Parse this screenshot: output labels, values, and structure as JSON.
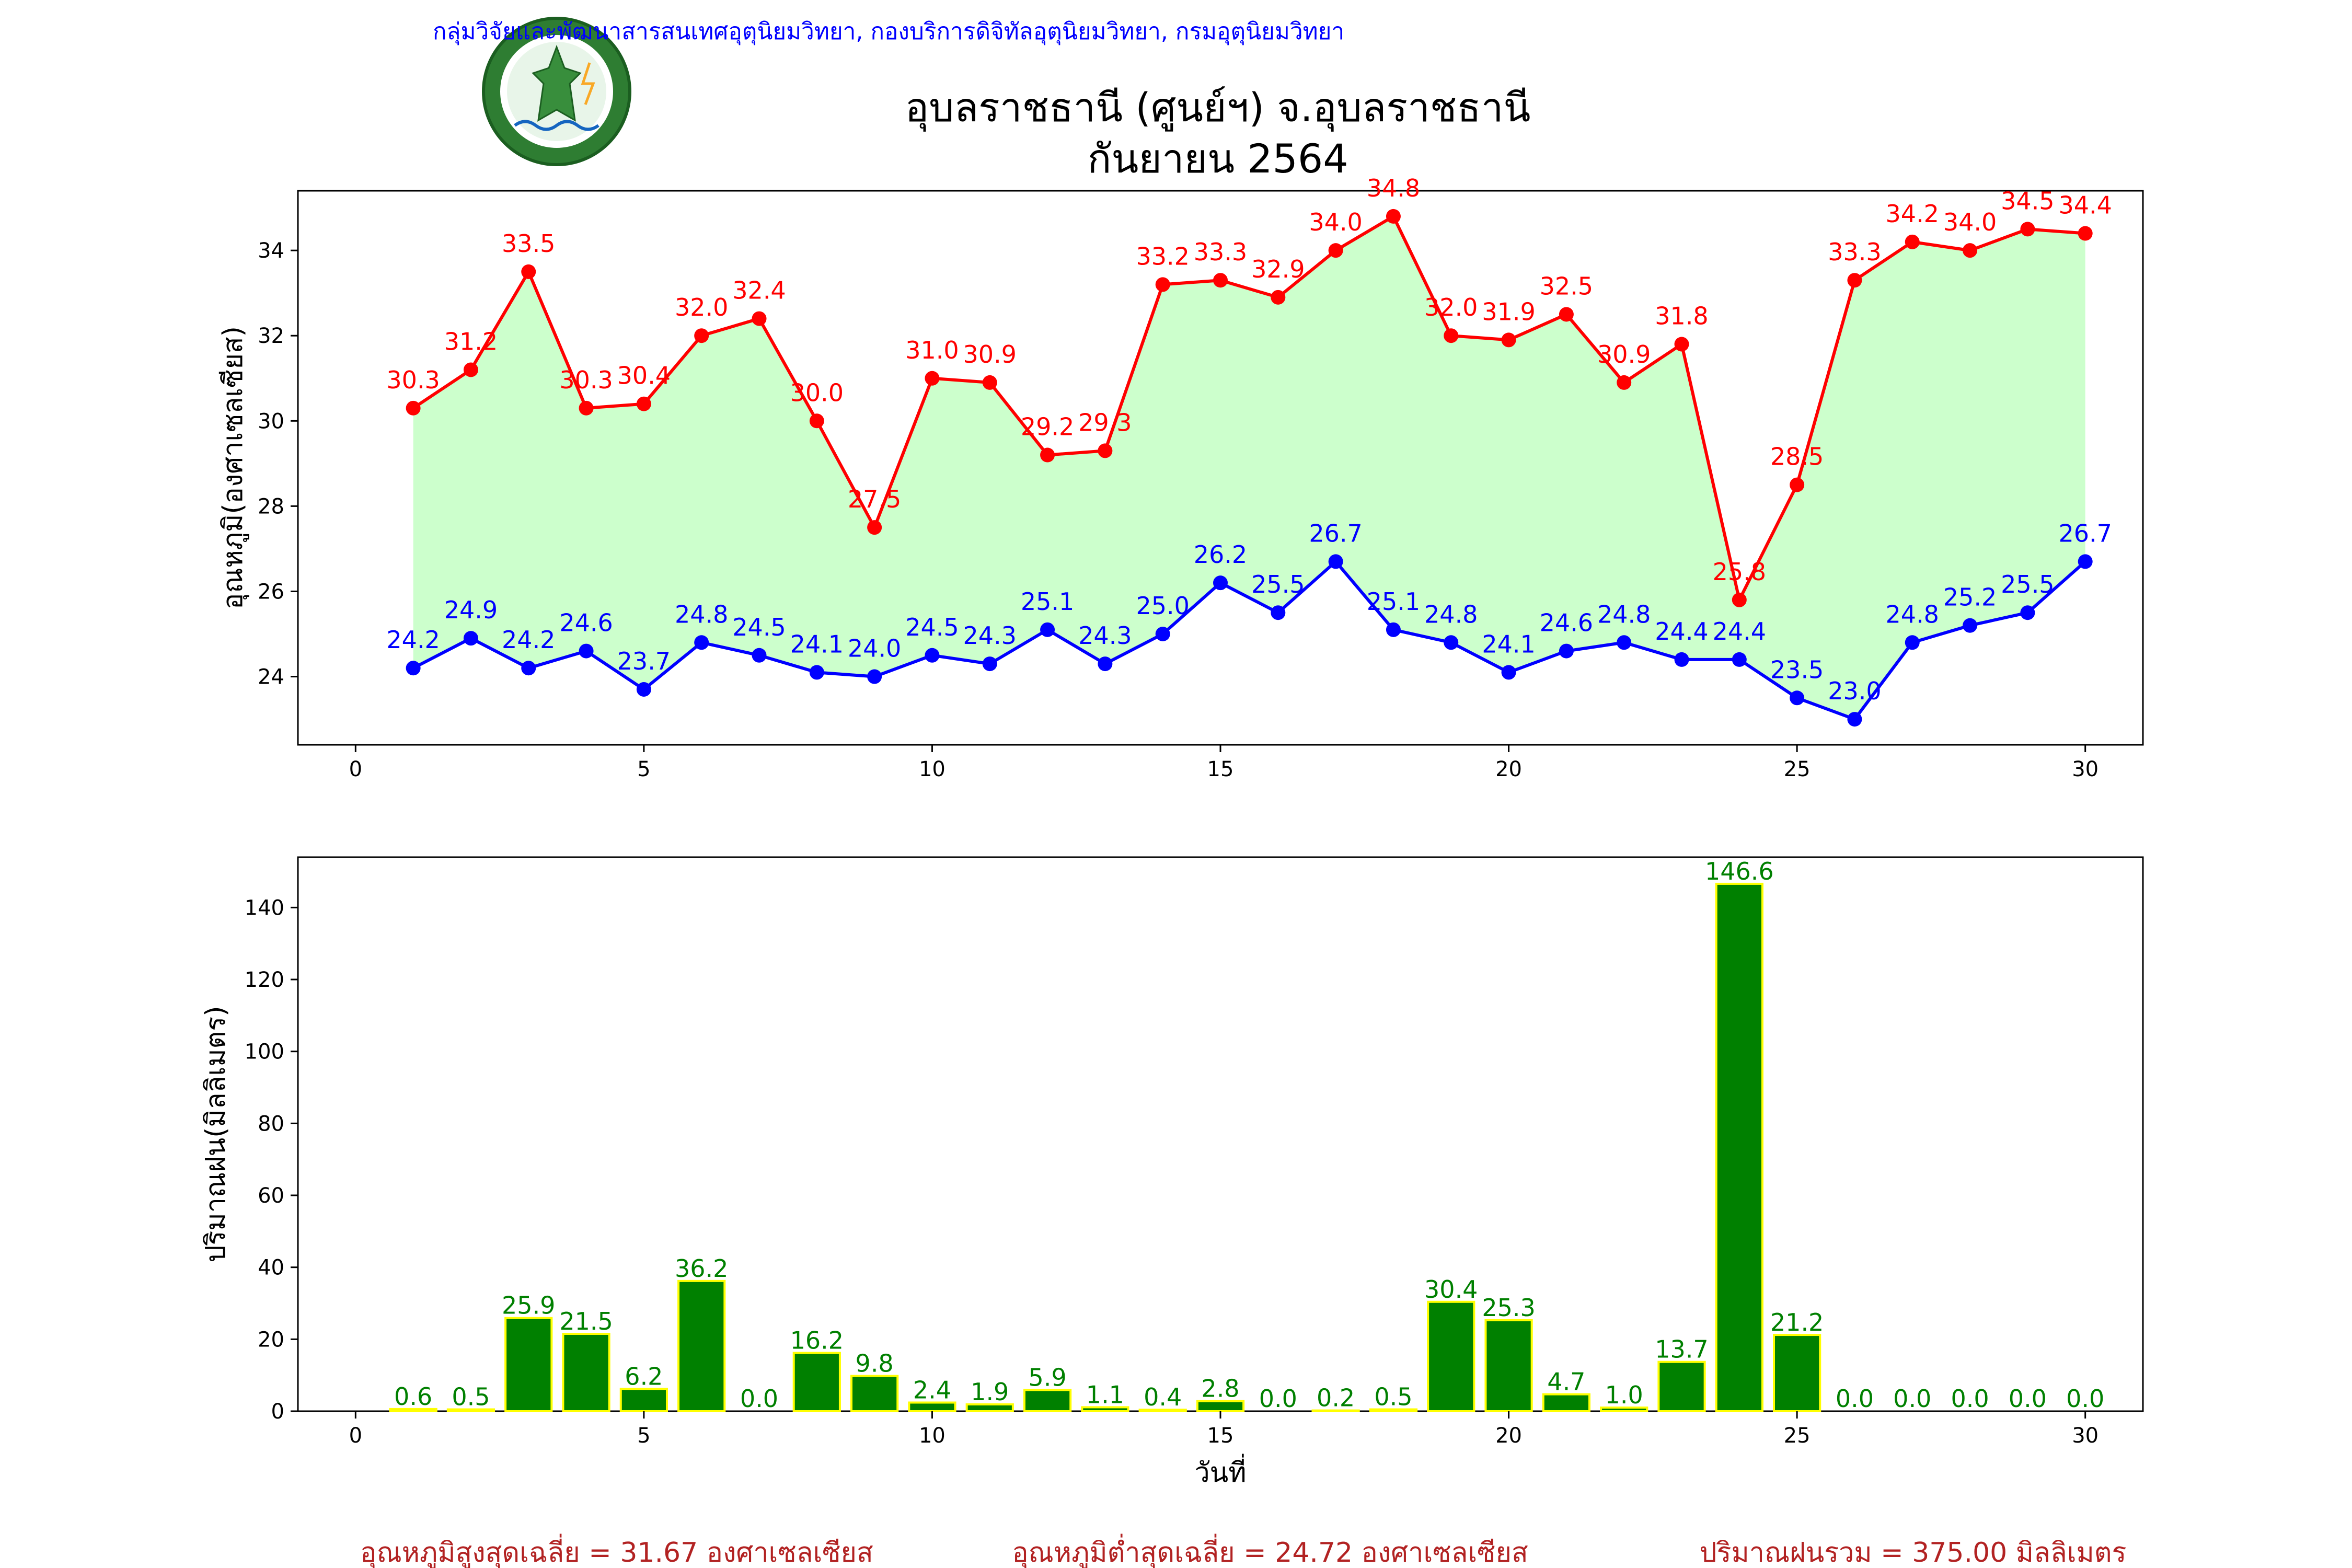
{
  "header": {
    "department": "กลุ่มวิจัยและพัฒนาสารสนเทศอุตุนิยมวิทยา, กองบริการดิจิทัลอุตุนิยมวิทยา, กรมอุตุนิยมวิทยา",
    "logo_text": "กรมอุตุนิยมวิทยา METEOROLOGICAL DEPARTMENT",
    "title_line1": "อุบลราชธานี (ศูนย์ฯ) จ.อุบลราชธานี",
    "title_line2": "กันยายน 2564"
  },
  "colors": {
    "header_text": "#0000ff",
    "max_temp": "#ff0000",
    "min_temp": "#0000ff",
    "temp_fill": "#ccffcc",
    "rain_bar": "#008000",
    "rain_edge": "#ffff00",
    "rain_label": "#008000",
    "summary": "#b22222"
  },
  "chart_data": [
    {
      "type": "line",
      "title": "",
      "xlabel": "",
      "ylabel": "อุณหภูมิ(องศาเซลเซียส)",
      "xlim": [
        -1,
        31
      ],
      "ylim": [
        22.4,
        35.4
      ],
      "xticks": [
        0,
        5,
        10,
        15,
        20,
        25,
        30
      ],
      "yticks": [
        24,
        26,
        28,
        30,
        32,
        34
      ],
      "fill_between": [
        "max",
        "min"
      ],
      "x": [
        1,
        2,
        3,
        4,
        5,
        6,
        7,
        8,
        9,
        10,
        11,
        12,
        13,
        14,
        15,
        16,
        17,
        18,
        19,
        20,
        21,
        22,
        23,
        24,
        25,
        26,
        27,
        28,
        29,
        30
      ],
      "series": [
        {
          "id": "max",
          "values": [
            30.3,
            31.2,
            33.5,
            30.3,
            30.4,
            32.0,
            32.4,
            30.0,
            27.5,
            31.0,
            30.9,
            29.2,
            29.3,
            33.2,
            33.3,
            32.9,
            34.0,
            34.8,
            32.0,
            31.9,
            32.5,
            30.9,
            31.8,
            25.8,
            28.5,
            33.3,
            34.2,
            34.0,
            34.5,
            34.4
          ]
        },
        {
          "id": "min",
          "values": [
            24.2,
            24.9,
            24.2,
            24.6,
            23.7,
            24.8,
            24.5,
            24.1,
            24.0,
            24.5,
            24.3,
            25.1,
            24.3,
            25.0,
            26.2,
            25.5,
            26.7,
            25.1,
            24.8,
            24.1,
            24.6,
            24.8,
            24.4,
            24.4,
            23.5,
            23.0,
            24.8,
            25.2,
            25.5,
            26.7
          ]
        }
      ]
    },
    {
      "type": "bar",
      "title": "",
      "xlabel": "วันที่",
      "ylabel": "ปริมาณฝน(มิลลิเมตร)",
      "xlim": [
        -1,
        31
      ],
      "ylim": [
        0,
        154
      ],
      "xticks": [
        0,
        5,
        10,
        15,
        20,
        25,
        30
      ],
      "yticks": [
        0,
        20,
        40,
        60,
        80,
        100,
        120,
        140
      ],
      "x": [
        1,
        2,
        3,
        4,
        5,
        6,
        7,
        8,
        9,
        10,
        11,
        12,
        13,
        14,
        15,
        16,
        17,
        18,
        19,
        20,
        21,
        22,
        23,
        24,
        25,
        26,
        27,
        28,
        29,
        30
      ],
      "values": [
        0.6,
        0.5,
        25.9,
        21.5,
        6.2,
        36.2,
        0.0,
        16.2,
        9.8,
        2.4,
        1.9,
        5.9,
        1.1,
        0.4,
        2.8,
        0.0,
        0.2,
        0.5,
        30.4,
        25.3,
        4.7,
        1.0,
        13.7,
        146.6,
        21.2,
        0.0,
        0.0,
        0.0,
        0.0,
        0.0
      ]
    }
  ],
  "summary": {
    "avg_max": "อุณหภูมิสูงสุดเฉลี่ย = 31.67 องศาเซลเซียส",
    "avg_min": "อุณหภูมิต่ำสุดเฉลี่ย = 24.72 องศาเซลเซียส",
    "total_rain": "ปริมาณฝนรวม = 375.00 มิลลิเมตร"
  }
}
